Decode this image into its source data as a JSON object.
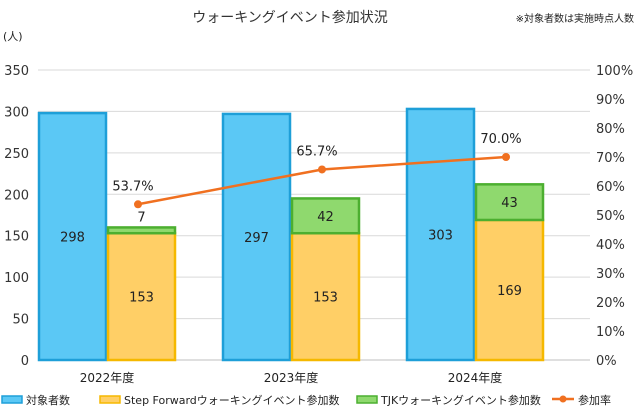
{
  "chart_data": {
    "type": "bar",
    "title": "ウォーキングイベント参加状況",
    "note": "※対象者数は実施時点人数",
    "y_unit_label": "(人)",
    "ylim": [
      0,
      350
    ],
    "y_ticks": [
      0,
      50,
      100,
      150,
      200,
      250,
      300,
      350
    ],
    "y2lim": [
      0,
      100
    ],
    "y2_ticks": [
      "0%",
      "10%",
      "20%",
      "30%",
      "40%",
      "50%",
      "60%",
      "70%",
      "80%",
      "90%",
      "100%"
    ],
    "categories": [
      "2022年度",
      "2023年度",
      "2024年度"
    ],
    "series": [
      {
        "name": "対象者数",
        "kind": "bar",
        "values": [
          298,
          297,
          303
        ],
        "color": "#5BC8F5",
        "edge": "#1E9FD8"
      },
      {
        "name": "Step Forwardウォーキングイベント参加数",
        "kind": "stack-bottom",
        "values": [
          153,
          153,
          169
        ],
        "color": "#FFCF66",
        "edge": "#F5B800"
      },
      {
        "name": "TJKウォーキングイベント参加数",
        "kind": "stack-top",
        "values": [
          7,
          42,
          43
        ],
        "color": "#8FD96E",
        "edge": "#4CAF30"
      },
      {
        "name": "参加率",
        "kind": "line",
        "axis": "right",
        "values": [
          53.7,
          65.7,
          70.0
        ],
        "labels": [
          "53.7%",
          "65.7%",
          "70.0%"
        ],
        "color": "#F07020"
      }
    ],
    "legend_position": "bottom"
  }
}
